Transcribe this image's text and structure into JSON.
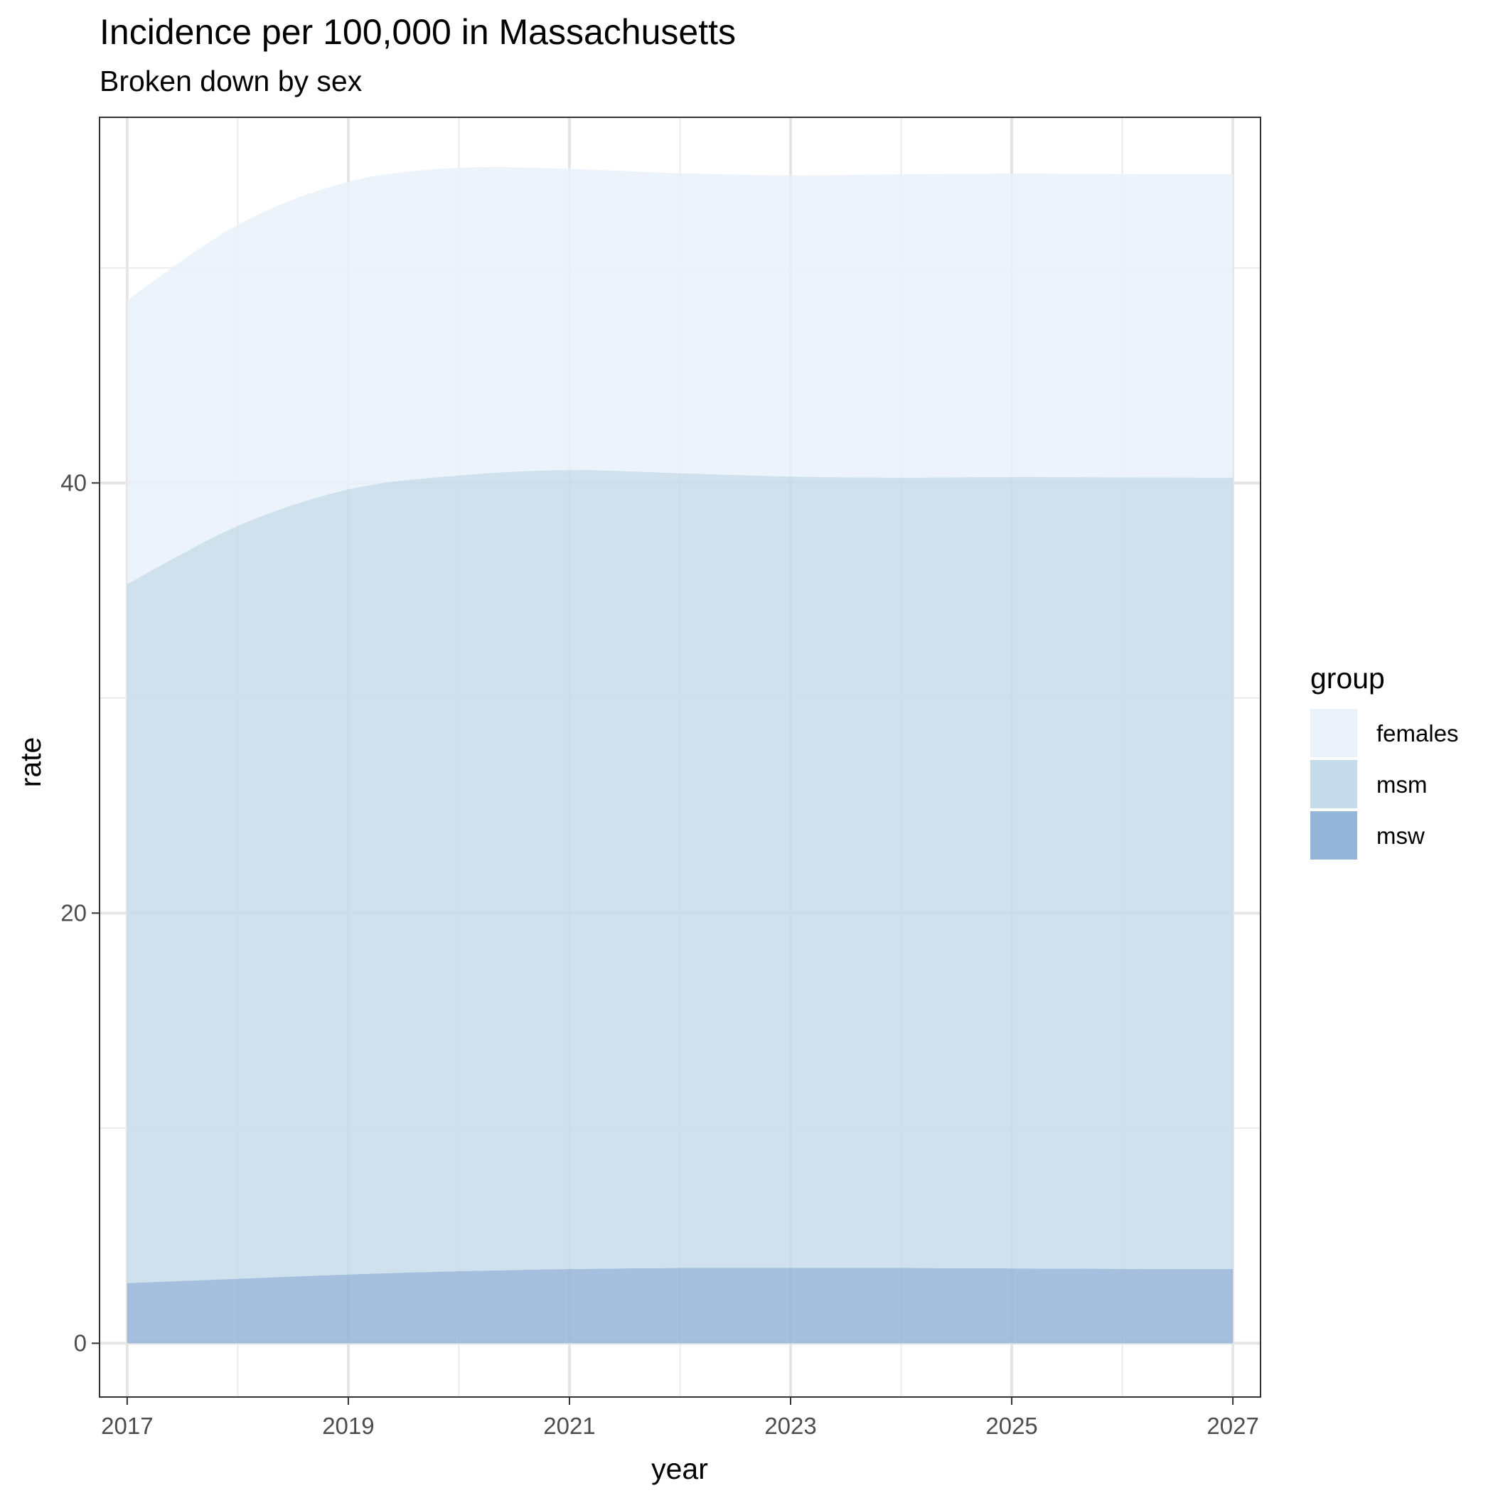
{
  "chart_data": {
    "type": "area",
    "stacked": true,
    "title": "Incidence per 100,000 in Massachusetts",
    "subtitle": "Broken down by sex",
    "xlabel": "year",
    "ylabel": "rate",
    "x": [
      2017,
      2018,
      2019,
      2020,
      2021,
      2022,
      2023,
      2024,
      2025,
      2026,
      2027
    ],
    "xticks": [
      "2017",
      "2019",
      "2021",
      "2023",
      "2025",
      "2027"
    ],
    "yticks": [
      "0",
      "20",
      "40"
    ],
    "xlim": [
      2016.75,
      2027.25
    ],
    "ylim": [
      -2.5,
      57.0
    ],
    "grid": true,
    "legend_title": "group",
    "legend_position": "right",
    "series": [
      {
        "name": "msw",
        "color": "#94b5d8",
        "values": [
          2.8,
          3.0,
          3.2,
          3.35,
          3.45,
          3.5,
          3.5,
          3.5,
          3.48,
          3.46,
          3.45
        ]
      },
      {
        "name": "msm",
        "color": "#c6dcea",
        "values": [
          32.5,
          35.0,
          36.5,
          37.0,
          37.15,
          36.95,
          36.8,
          36.75,
          36.8,
          36.8,
          36.8
        ]
      },
      {
        "name": "females",
        "color": "#eaf1f9",
        "values": [
          13.2,
          14.0,
          14.3,
          14.3,
          14.0,
          13.95,
          14.0,
          14.1,
          14.1,
          14.1,
          14.1
        ]
      }
    ]
  }
}
